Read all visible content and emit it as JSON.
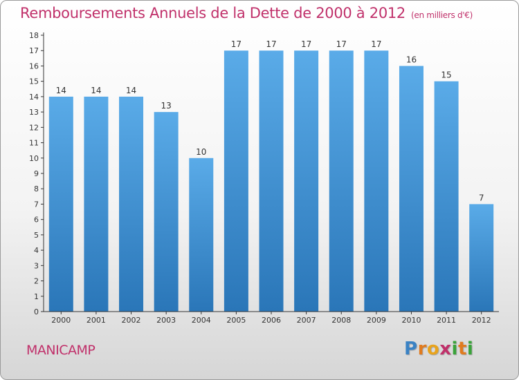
{
  "header": {
    "title": "Remboursements Annuels de la Dette de 2000 à 2012",
    "subtitle": "(en milliers d'€)"
  },
  "footer": {
    "commune": "MANICAMP",
    "brand_letters": [
      "P",
      "r",
      "o",
      "x",
      "i",
      "t",
      "i"
    ],
    "brand_colors": [
      "#3a82c4",
      "#e07b1f",
      "#e8a31c",
      "#c0306a",
      "#3aa33a",
      "#e07b1f",
      "#3aa33a"
    ]
  },
  "colors": {
    "bar_top": "#5aabe8",
    "bar_bottom": "#2a76b8",
    "title": "#c0306a",
    "axis": "#333333"
  },
  "chart_data": {
    "type": "bar",
    "categories": [
      "2000",
      "2001",
      "2002",
      "2003",
      "2004",
      "2005",
      "2006",
      "2007",
      "2008",
      "2009",
      "2010",
      "2011",
      "2012"
    ],
    "values": [
      14,
      14,
      14,
      13,
      10,
      17,
      17,
      17,
      17,
      17,
      16,
      15,
      7
    ],
    "title": "Remboursements Annuels de la Dette de 2000 à 2012",
    "subtitle": "(en milliers d'€)",
    "ylim": [
      0,
      18
    ],
    "yticks": [
      "0",
      "1",
      "2",
      "3",
      "4",
      "5",
      "6",
      "7",
      "8",
      "9",
      "10",
      "11",
      "12",
      "13",
      "14",
      "15",
      "16",
      "17",
      "18"
    ],
    "grid": false,
    "data_labels": true
  }
}
